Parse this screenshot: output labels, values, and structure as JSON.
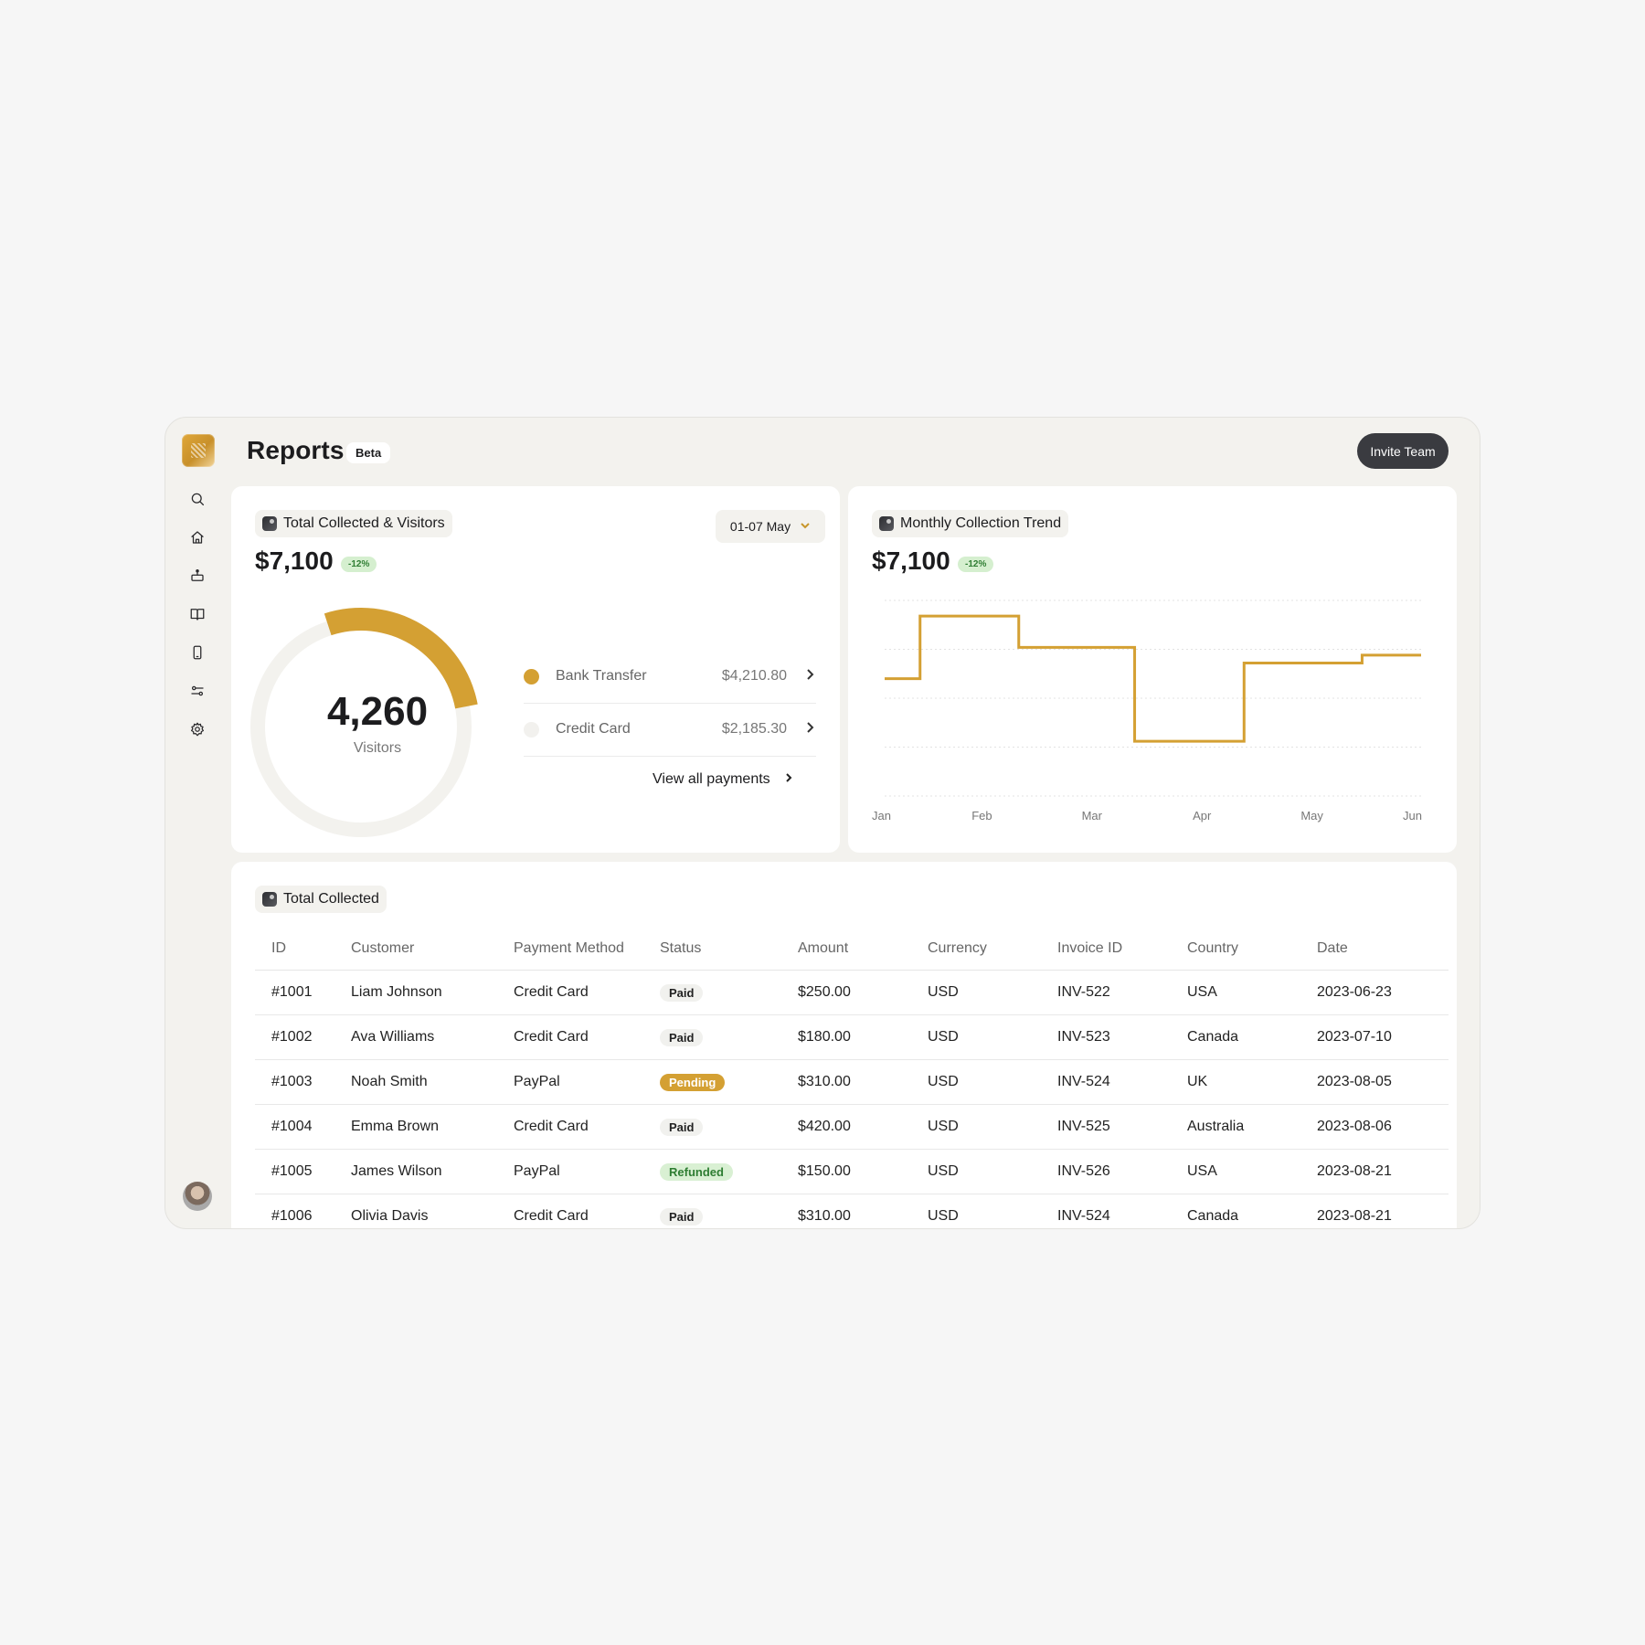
{
  "app": {
    "title": "Reports",
    "badge": "Beta",
    "invite_button": "Invite Team",
    "sidebar_icons": [
      "search-icon",
      "home-icon",
      "inbox-icon",
      "book-icon",
      "mobile-icon",
      "sliders-icon",
      "gear-icon"
    ]
  },
  "colors": {
    "accent": "#d4a033",
    "muted": "#f3f2ee",
    "dark": "#3a3b40",
    "success_bg": "#d5efcf",
    "success_text": "#2e7d32"
  },
  "visitors_card": {
    "title": "Total Collected & Visitors",
    "amount": "$7,100",
    "delta": "-12%",
    "date_range": "01-07 May",
    "visitors_value": "4,260",
    "visitors_label": "Visitors",
    "donut_fraction": 0.27,
    "breakdown": [
      {
        "label": "Bank Transfer",
        "value": "$4,210.80",
        "color": "#d4a033"
      },
      {
        "label": "Credit Card",
        "value": "$2,185.30",
        "color": "#f2f1ee"
      }
    ],
    "view_all": "View all payments"
  },
  "trend_card": {
    "title": "Monthly Collection Trend",
    "amount": "$7,100",
    "delta": "-12%"
  },
  "chart_data": {
    "type": "line",
    "step": true,
    "x": [
      "Jan",
      "Feb",
      "Mar",
      "Apr",
      "May",
      "Jun"
    ],
    "points": [
      [
        0,
        0.6
      ],
      [
        0.33,
        0.6
      ],
      [
        0.33,
        0.92
      ],
      [
        1.25,
        0.92
      ],
      [
        1.25,
        0.76
      ],
      [
        2.33,
        0.76
      ],
      [
        2.33,
        0.28
      ],
      [
        3.35,
        0.28
      ],
      [
        3.35,
        0.68
      ],
      [
        4.45,
        0.68
      ],
      [
        4.45,
        0.72
      ],
      [
        5,
        0.72
      ]
    ],
    "ylim": [
      0,
      1
    ],
    "grid": true,
    "color": "#d4a033"
  },
  "table_card": {
    "title": "Total Collected",
    "columns": [
      "ID",
      "Customer",
      "Payment Method",
      "Status",
      "Amount",
      "Currency",
      "Invoice ID",
      "Country",
      "Date"
    ],
    "rows": [
      {
        "id": "#1001",
        "customer": "Liam Johnson",
        "method": "Credit Card",
        "status": "Paid",
        "status_type": "paid",
        "amount": "$250.00",
        "currency": "USD",
        "invoice": "INV-522",
        "country": "USA",
        "date": "2023-06-23"
      },
      {
        "id": "#1002",
        "customer": "Ava Williams",
        "method": "Credit Card",
        "status": "Paid",
        "status_type": "paid",
        "amount": "$180.00",
        "currency": "USD",
        "invoice": "INV-523",
        "country": "Canada",
        "date": "2023-07-10"
      },
      {
        "id": "#1003",
        "customer": "Noah Smith",
        "method": "PayPal",
        "status": "Pending",
        "status_type": "pending",
        "amount": "$310.00",
        "currency": "USD",
        "invoice": "INV-524",
        "country": "UK",
        "date": "2023-08-05"
      },
      {
        "id": "#1004",
        "customer": "Emma Brown",
        "method": "Credit Card",
        "status": "Paid",
        "status_type": "paid",
        "amount": "$420.00",
        "currency": "USD",
        "invoice": "INV-525",
        "country": "Australia",
        "date": "2023-08-06"
      },
      {
        "id": "#1005",
        "customer": "James Wilson",
        "method": "PayPal",
        "status": "Refunded",
        "status_type": "refunded",
        "amount": "$150.00",
        "currency": "USD",
        "invoice": "INV-526",
        "country": "USA",
        "date": "2023-08-21"
      },
      {
        "id": "#1006",
        "customer": "Olivia Davis",
        "method": "Credit Card",
        "status": "Paid",
        "status_type": "paid",
        "amount": "$310.00",
        "currency": "USD",
        "invoice": "INV-524",
        "country": "Canada",
        "date": "2023-08-21"
      }
    ]
  }
}
